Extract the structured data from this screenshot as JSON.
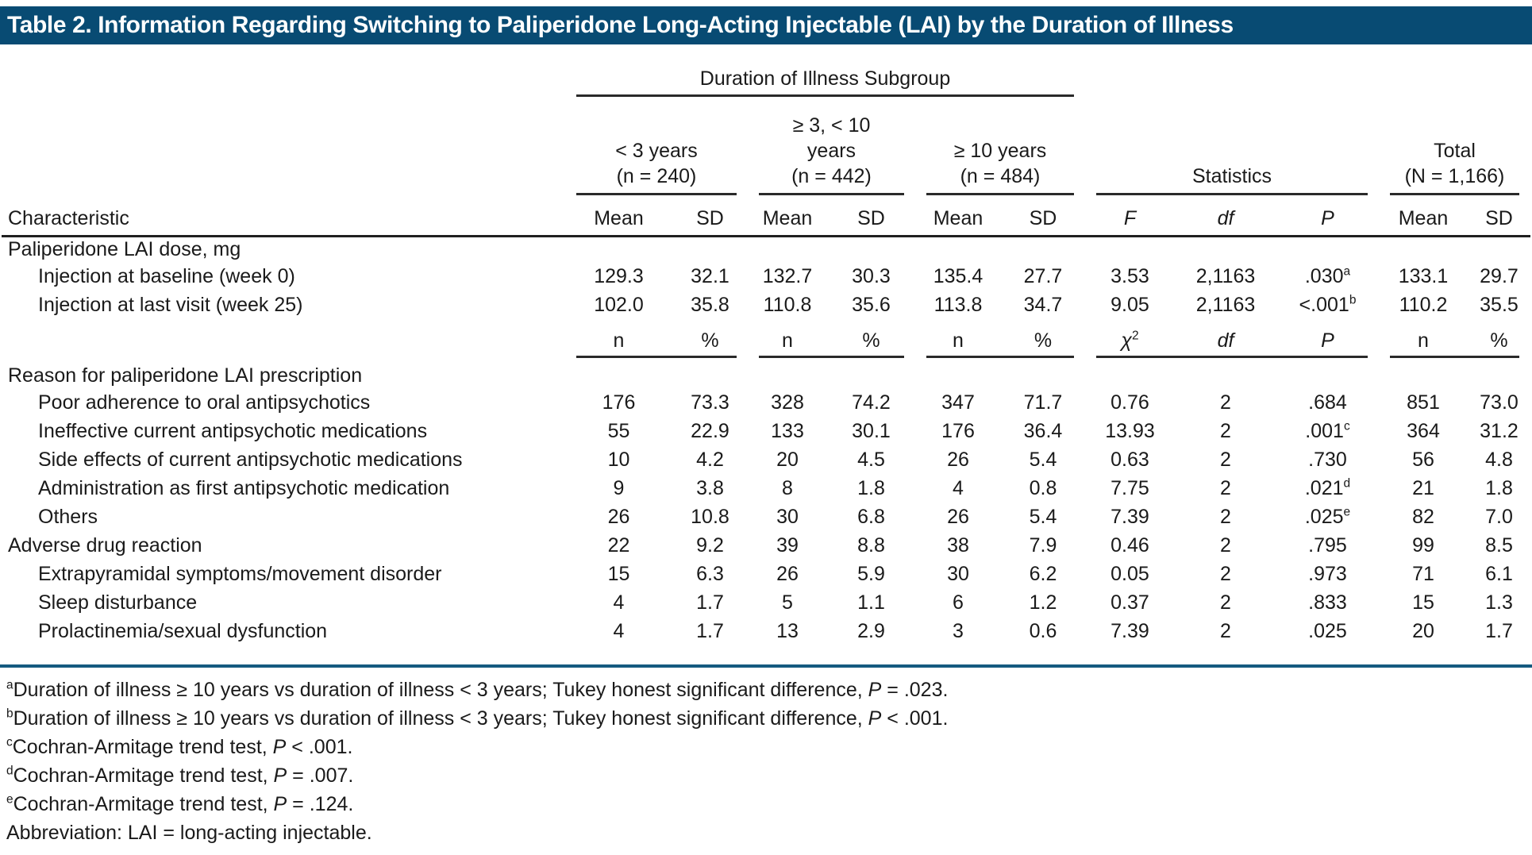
{
  "colors": {
    "title_bar": "#084b73",
    "rule_blue": "#155a80",
    "text": "#1a1a1a"
  },
  "title": "Table 2. Information Regarding Switching to Paliperidone Long-Acting Injectable (LAI) by the Duration of Illness",
  "header": {
    "subgroup_title": "Duration of Illness Subgroup",
    "characteristic": "Characteristic",
    "statistics": "Statistics",
    "total": [
      "Total",
      "(N = 1,166)"
    ],
    "groups": [
      {
        "lines": [
          "< 3 years",
          "(n = 240)"
        ]
      },
      {
        "lines": [
          "≥ 3, < 10",
          "years",
          "(n = 442)"
        ]
      },
      {
        "lines": [
          "≥ 10 years",
          "(n = 484)"
        ]
      }
    ],
    "cols": [
      "Mean",
      "SD",
      "Mean",
      "SD",
      "Mean",
      "SD",
      "F",
      "df",
      "P",
      "Mean",
      "SD"
    ]
  },
  "rows": [
    {
      "type": "section",
      "indent": false,
      "label": "Paliperidone LAI dose, mg",
      "cells": [
        "",
        "",
        "",
        "",
        "",
        "",
        "",
        "",
        "",
        "",
        ""
      ]
    },
    {
      "type": "data",
      "indent": true,
      "label": "Injection at baseline (week 0)",
      "cells": [
        "129.3",
        "32.1",
        "132.7",
        "30.3",
        "135.4",
        "27.7",
        "3.53",
        "2,1163",
        {
          "v": ".030",
          "sup": "a"
        },
        "133.1",
        "29.7"
      ]
    },
    {
      "type": "data",
      "indent": true,
      "label": "Injection at last visit (week 25)",
      "cells": [
        "102.0",
        "35.8",
        "110.8",
        "35.6",
        "113.8",
        "34.7",
        "9.05",
        "2,1163",
        {
          "v": "<.001",
          "sup": "b"
        },
        "110.2",
        "35.5"
      ]
    },
    {
      "type": "subheader",
      "indent": false,
      "label": "",
      "cells": [
        "n",
        "%",
        "n",
        "%",
        "n",
        "%",
        {
          "v": "χ",
          "sup": "2",
          "italic": true
        },
        {
          "v": "df",
          "italic": true
        },
        {
          "v": "P",
          "italic": true
        },
        "n",
        "%"
      ]
    },
    {
      "type": "section",
      "indent": false,
      "label": "Reason for paliperidone LAI prescription",
      "cells": [
        "",
        "",
        "",
        "",
        "",
        "",
        "",
        "",
        "",
        "",
        ""
      ]
    },
    {
      "type": "data",
      "indent": true,
      "label": "Poor adherence to oral antipsychotics",
      "cells": [
        "176",
        "73.3",
        "328",
        "74.2",
        "347",
        "71.7",
        "0.76",
        "2",
        ".684",
        "851",
        "73.0"
      ]
    },
    {
      "type": "data",
      "indent": true,
      "label": "Ineffective current antipsychotic medications",
      "cells": [
        "55",
        "22.9",
        "133",
        "30.1",
        "176",
        "36.4",
        "13.93",
        "2",
        {
          "v": ".001",
          "sup": "c"
        },
        "364",
        "31.2"
      ]
    },
    {
      "type": "data",
      "indent": true,
      "label": "Side effects of current antipsychotic medications",
      "cells": [
        "10",
        "4.2",
        "20",
        "4.5",
        "26",
        "5.4",
        "0.63",
        "2",
        ".730",
        "56",
        "4.8"
      ]
    },
    {
      "type": "data",
      "indent": true,
      "label": "Administration as first antipsychotic medication",
      "cells": [
        "9",
        "3.8",
        "8",
        "1.8",
        "4",
        "0.8",
        "7.75",
        "2",
        {
          "v": ".021",
          "sup": "d"
        },
        "21",
        "1.8"
      ]
    },
    {
      "type": "data",
      "indent": true,
      "label": "Others",
      "cells": [
        "26",
        "10.8",
        "30",
        "6.8",
        "26",
        "5.4",
        "7.39",
        "2",
        {
          "v": ".025",
          "sup": "e"
        },
        "82",
        "7.0"
      ]
    },
    {
      "type": "data",
      "indent": false,
      "label": "Adverse drug reaction",
      "cells": [
        "22",
        "9.2",
        "39",
        "8.8",
        "38",
        "7.9",
        "0.46",
        "2",
        ".795",
        "99",
        "8.5"
      ]
    },
    {
      "type": "data",
      "indent": true,
      "label": "Extrapyramidal symptoms/movement disorder",
      "cells": [
        "15",
        "6.3",
        "26",
        "5.9",
        "30",
        "6.2",
        "0.05",
        "2",
        ".973",
        "71",
        "6.1"
      ]
    },
    {
      "type": "data",
      "indent": true,
      "label": "Sleep disturbance",
      "cells": [
        "4",
        "1.7",
        "5",
        "1.1",
        "6",
        "1.2",
        "0.37",
        "2",
        ".833",
        "15",
        "1.3"
      ]
    },
    {
      "type": "data",
      "indent": true,
      "label": "Prolactinemia/sexual dysfunction",
      "cells": [
        "4",
        "1.7",
        "13",
        "2.9",
        "3",
        "0.6",
        "7.39",
        "2",
        ".025",
        "20",
        "1.7"
      ]
    }
  ],
  "footnotes": [
    {
      "sup": "a",
      "text": "Duration of illness ≥ 10 years vs duration of illness < 3 years; Tukey honest significant difference, ",
      "stat": "P",
      "tail": " = .023."
    },
    {
      "sup": "b",
      "text": "Duration of illness ≥ 10 years vs duration of illness < 3 years; Tukey honest significant difference, ",
      "stat": "P",
      "tail": " < .001."
    },
    {
      "sup": "c",
      "text": "Cochran-Armitage trend test, ",
      "stat": "P",
      "tail": " < .001."
    },
    {
      "sup": "d",
      "text": "Cochran-Armitage trend test, ",
      "stat": "P",
      "tail": " = .007."
    },
    {
      "sup": "e",
      "text": "Cochran-Armitage trend test, ",
      "stat": "P",
      "tail": " = .124."
    },
    {
      "sup": "",
      "text": "Abbreviation: LAI = long-acting injectable.",
      "stat": "",
      "tail": ""
    }
  ]
}
